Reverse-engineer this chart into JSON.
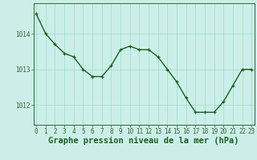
{
  "x": [
    0,
    1,
    2,
    3,
    4,
    5,
    6,
    7,
    8,
    9,
    10,
    11,
    12,
    13,
    14,
    15,
    16,
    17,
    18,
    19,
    20,
    21,
    22,
    23
  ],
  "y": [
    1014.55,
    1014.0,
    1013.7,
    1013.45,
    1013.35,
    1013.0,
    1012.8,
    1012.8,
    1013.1,
    1013.55,
    1013.65,
    1013.55,
    1013.55,
    1013.35,
    1013.0,
    1012.65,
    1012.2,
    1011.8,
    1011.8,
    1011.8,
    1012.1,
    1012.55,
    1013.0,
    1013.0
  ],
  "line_color": "#1a6020",
  "marker_color": "#1a6020",
  "bg_color": "#cceee8",
  "plot_bg_color": "#cceee8",
  "grid_color": "#99ddcc",
  "axis_color": "#336633",
  "border_color": "#336633",
  "xlabel": "Graphe pression niveau de la mer (hPa)",
  "xlabel_color": "#1a6020",
  "xlabel_fontsize": 7.5,
  "ylim": [
    1011.45,
    1014.85
  ],
  "yticks": [
    1012,
    1013,
    1014
  ],
  "xticks": [
    0,
    1,
    2,
    3,
    4,
    5,
    6,
    7,
    8,
    9,
    10,
    11,
    12,
    13,
    14,
    15,
    16,
    17,
    18,
    19,
    20,
    21,
    22,
    23
  ],
  "tick_fontsize": 5.5,
  "line_width": 1.0,
  "marker_size": 3.5,
  "fig_width": 3.2,
  "fig_height": 2.0,
  "dpi": 100
}
